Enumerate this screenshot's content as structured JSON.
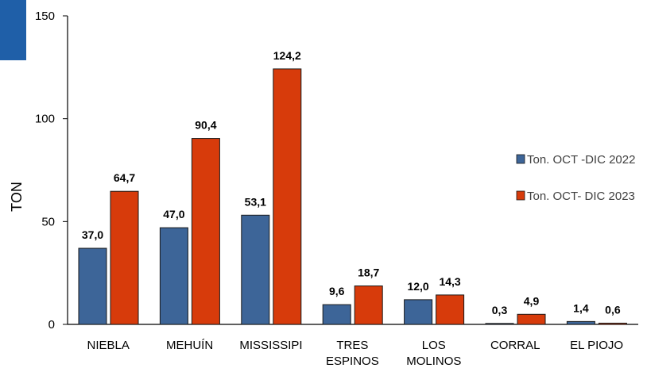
{
  "chart_data": {
    "type": "bar",
    "ylabel": "TON",
    "ylim": [
      0,
      150
    ],
    "yticks": [
      "0",
      "50",
      "100",
      "150"
    ],
    "ytick_values": [
      0,
      50,
      100,
      150
    ],
    "grid": false,
    "legend_position": "right",
    "categories": [
      [
        "NIEBLA"
      ],
      [
        "MEHUÍN"
      ],
      [
        "MISSISSIPI"
      ],
      [
        "TRES",
        "ESPINOS"
      ],
      [
        "LOS",
        "MOLINOS"
      ],
      [
        "CORRAL"
      ],
      [
        "EL PIOJO"
      ]
    ],
    "series": [
      {
        "name": "Ton. OCT -DIC 2022",
        "color": "#3d6598",
        "values": [
          37.0,
          47.0,
          53.1,
          9.6,
          12.0,
          0.3,
          1.4
        ],
        "labels": [
          "37,0",
          "47,0",
          "53,1",
          "9,6",
          "12,0",
          "0,3",
          "1,4"
        ]
      },
      {
        "name": "Ton. OCT- DIC 2023",
        "color": "#d73b0b",
        "values": [
          64.7,
          90.4,
          124.2,
          18.7,
          14.3,
          4.9,
          0.6
        ],
        "labels": [
          "64,7",
          "90,4",
          "124,2",
          "18,7",
          "14,3",
          "4,9",
          "0,6"
        ]
      }
    ]
  },
  "decoration": {
    "accent_color": "#1f5fa8"
  }
}
